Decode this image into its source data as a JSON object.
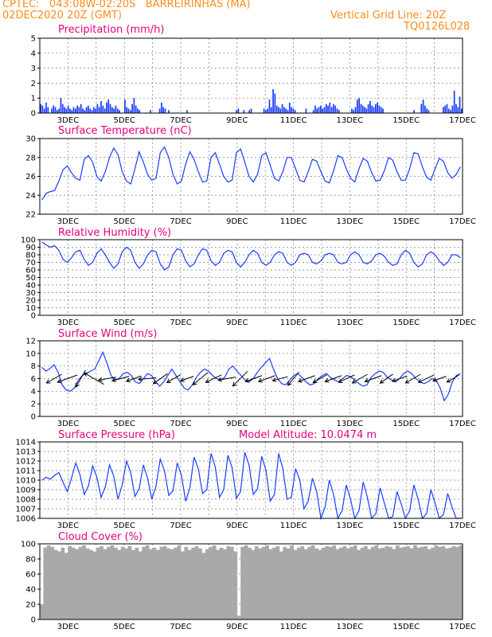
{
  "header": {
    "line1_left": "CPTEC:   043:08W-02:20S   BARREIRINHAS (MA)",
    "line2_left": "02DEC2020 20Z (GMT)",
    "line1_right": "Vertical Grid Line: 20Z",
    "line2_right": "TQ0126L028"
  },
  "colors": {
    "line": "#1a3cff",
    "bar": "#1a3cff",
    "cloud": "#a9a9a9",
    "title": "#e6007e",
    "header": "#ff8c1a"
  },
  "chart_data": [
    {
      "type": "bar",
      "title": "Precipitation (mm/h)",
      "ylim": [
        0,
        5
      ],
      "yticks": [
        "0",
        "1",
        "2",
        "3",
        "4",
        "5"
      ],
      "xticks": [
        "3DEC",
        "5DEC",
        "7DEC",
        "9DEC",
        "11DEC",
        "13DEC",
        "15DEC",
        "17DEC"
      ],
      "grid": true,
      "series": [
        {
          "values": [
            0.6,
            0.5,
            0.3,
            0.7,
            0.4,
            0,
            0.3,
            0.5,
            0.4,
            0.2,
            0.3,
            1.0,
            0.6,
            0.4,
            0.3,
            0.5,
            0.3,
            0.2,
            0.4,
            0.3,
            0.5,
            0.4,
            0.6,
            0.3,
            0.2,
            0.4,
            0.5,
            0.3,
            0.2,
            0.4,
            0.3,
            0.6,
            0.4,
            0.8,
            0.5,
            0.3,
            0.7,
            0.9,
            0.6,
            0.4,
            0.3,
            0.5,
            0.3,
            0.2,
            0,
            0,
            0.9,
            0.4,
            0.3,
            0.2,
            0.6,
            1.0,
            0.5,
            0.3,
            0.2,
            0,
            0,
            0,
            0,
            0,
            0.2,
            0,
            0,
            0,
            0,
            0.3,
            0.7,
            0.4,
            0.3,
            0,
            0.2,
            0,
            0,
            0,
            0,
            0,
            0,
            0,
            0,
            0,
            0.2,
            0,
            0,
            0,
            0,
            0,
            0,
            0,
            0,
            0,
            0,
            0,
            0,
            0,
            0,
            0,
            0,
            0,
            0,
            0,
            0,
            0,
            0,
            0,
            0,
            0,
            0,
            0.2,
            0.3,
            0,
            0,
            0.2,
            0,
            0,
            0.2,
            0.3,
            0,
            0,
            0,
            0,
            0,
            0,
            0.3,
            0.2,
            0.3,
            0.9,
            0.4,
            1.6,
            1.3,
            0.5,
            0.4,
            0.3,
            0.6,
            0.4,
            0.3,
            0.2,
            0.7,
            0.4,
            0.3,
            0.2,
            0,
            0,
            0,
            0,
            0,
            0.3,
            0,
            0,
            0,
            0.2,
            0.5,
            0.3,
            0.4,
            0.5,
            0.3,
            0.4,
            0.6,
            0.5,
            0.7,
            0.4,
            0.6,
            0.5,
            0.3,
            0.2,
            0,
            0,
            0,
            0,
            0,
            0,
            0.3,
            0.2,
            0.4,
            0.9,
            1.0,
            0.6,
            0.5,
            0.4,
            0.3,
            0.6,
            0.8,
            0.5,
            0.4,
            0.6,
            0.7,
            0.5,
            0.4,
            0.3,
            0,
            0,
            0,
            0,
            0,
            0,
            0,
            0,
            0,
            0,
            0,
            0,
            0,
            0,
            0,
            0,
            0.2,
            0,
            0,
            0,
            0.6,
            0.9,
            0.5,
            0.3,
            0.2,
            0,
            0,
            0,
            0,
            0,
            0,
            0,
            0.4,
            0.5,
            0.6,
            0.3,
            0.2,
            0.5,
            1.5,
            0.6,
            0.4,
            1.1,
            0.3
          ]
        }
      ]
    },
    {
      "type": "line",
      "title": "Surface Temperature (nC)",
      "ylim": [
        22,
        30
      ],
      "yticks": [
        "22",
        "24",
        "26",
        "28",
        "30"
      ],
      "xticks": [
        "3DEC",
        "5DEC",
        "7DEC",
        "9DEC",
        "11DEC",
        "13DEC",
        "15DEC",
        "17DEC"
      ],
      "grid": true,
      "series": [
        {
          "values": [
            23.5,
            24.2,
            24.4,
            24.5,
            25.5,
            26.7,
            27.1,
            26.4,
            25.8,
            25.6,
            27.8,
            28.2,
            27.5,
            26.0,
            25.5,
            26.5,
            28.0,
            29.0,
            28.3,
            26.5,
            25.5,
            25.2,
            26.8,
            28.6,
            27.5,
            26.2,
            25.6,
            25.8,
            28.5,
            29.1,
            28.0,
            26.2,
            25.2,
            25.5,
            27.3,
            28.6,
            27.8,
            26.5,
            25.4,
            25.5,
            28.0,
            28.5,
            27.3,
            26.0,
            25.4,
            25.6,
            28.5,
            28.9,
            27.5,
            26.0,
            25.4,
            26.2,
            28.2,
            28.5,
            27.2,
            25.8,
            25.5,
            26.5,
            28.0,
            28.0,
            26.8,
            25.6,
            25.4,
            26.5,
            27.8,
            27.6,
            26.5,
            25.5,
            25.3,
            26.6,
            28.2,
            28.0,
            26.8,
            25.8,
            25.4,
            26.8,
            27.9,
            27.6,
            26.4,
            25.5,
            25.6,
            26.6,
            28.0,
            27.7,
            26.5,
            25.6,
            25.6,
            26.8,
            28.5,
            28.4,
            27.0,
            25.9,
            25.6,
            26.8,
            27.9,
            27.6,
            26.4,
            25.8,
            26.2,
            27.0
          ]
        }
      ]
    },
    {
      "type": "line",
      "title": "Relative Humidity (%)",
      "ylim": [
        0,
        100
      ],
      "yticks": [
        "0",
        "10",
        "20",
        "30",
        "40",
        "50",
        "60",
        "70",
        "80",
        "90",
        "100"
      ],
      "xticks": [
        "3DEC",
        "5DEC",
        "7DEC",
        "9DEC",
        "11DEC",
        "13DEC",
        "15DEC",
        "17DEC"
      ],
      "grid": true,
      "series": [
        {
          "values": [
            97,
            93,
            90,
            92,
            86,
            74,
            70,
            76,
            84,
            86,
            74,
            66,
            70,
            82,
            88,
            80,
            70,
            62,
            68,
            84,
            90,
            86,
            70,
            62,
            68,
            80,
            86,
            84,
            68,
            60,
            64,
            80,
            88,
            86,
            72,
            64,
            68,
            80,
            88,
            86,
            72,
            66,
            70,
            82,
            86,
            84,
            70,
            64,
            70,
            80,
            86,
            82,
            70,
            66,
            70,
            80,
            84,
            82,
            70,
            66,
            70,
            80,
            82,
            80,
            70,
            68,
            72,
            80,
            82,
            80,
            70,
            68,
            70,
            80,
            84,
            80,
            70,
            68,
            72,
            80,
            82,
            78,
            70,
            66,
            68,
            80,
            86,
            82,
            70,
            64,
            68,
            80,
            84,
            80,
            72,
            66,
            70,
            80,
            80,
            76
          ]
        }
      ]
    },
    {
      "type": "line",
      "title": "Surface Wind (m/s)",
      "ylim": [
        0,
        12
      ],
      "yticks": [
        "0",
        "2",
        "4",
        "6",
        "8",
        "10",
        "12"
      ],
      "xticks": [
        "3DEC",
        "5DEC",
        "7DEC",
        "9DEC",
        "11DEC",
        "13DEC",
        "15DEC",
        "17DEC"
      ],
      "grid": true,
      "series": [
        {
          "values": [
            7.8,
            7.2,
            7.6,
            8.2,
            7.0,
            5.0,
            4.2,
            4.0,
            4.5,
            5.8,
            6.5,
            6.8,
            7.2,
            7.5,
            8.8,
            10.2,
            8.5,
            6.5,
            5.8,
            6.0,
            6.8,
            7.0,
            6.5,
            5.5,
            5.2,
            6.0,
            6.8,
            6.5,
            5.5,
            4.8,
            5.5,
            6.5,
            7.5,
            6.5,
            5.5,
            4.5,
            4.2,
            5.0,
            6.2,
            7.0,
            7.5,
            7.2,
            6.5,
            6.0,
            5.8,
            6.2,
            7.5,
            8.0,
            7.2,
            6.5,
            5.8,
            5.5,
            6.0,
            7.0,
            7.8,
            8.5,
            9.2,
            7.5,
            6.0,
            5.2,
            5.0,
            5.8,
            6.5,
            6.8,
            6.2,
            5.5,
            5.0,
            5.2,
            6.0,
            6.5,
            6.8,
            6.2,
            5.8,
            5.5,
            6.0,
            6.5,
            6.3,
            5.8,
            5.2,
            4.8,
            5.0,
            6.2,
            6.8,
            7.2,
            7.0,
            6.2,
            5.8,
            5.5,
            6.0,
            6.8,
            7.2,
            6.8,
            6.0,
            5.5,
            5.2,
            5.5,
            6.0,
            5.8,
            4.5,
            2.5,
            3.5,
            5.5,
            6.5,
            6.8
          ]
        }
      ],
      "wind_arrows": [
        {
          "dir_deg": 210,
          "len": 1.0
        },
        {
          "dir_deg": 200,
          "len": 1.2
        },
        {
          "dir_deg": 240,
          "len": 1.1
        },
        {
          "dir_deg": 150,
          "len": 1.3
        },
        {
          "dir_deg": 190,
          "len": 1.0
        },
        {
          "dir_deg": 195,
          "len": 1.0
        },
        {
          "dir_deg": 200,
          "len": 0.9
        },
        {
          "dir_deg": 185,
          "len": 1.0
        },
        {
          "dir_deg": 215,
          "len": 1.0
        },
        {
          "dir_deg": 210,
          "len": 0.9
        },
        {
          "dir_deg": 200,
          "len": 0.8
        },
        {
          "dir_deg": 220,
          "len": 1.1
        },
        {
          "dir_deg": 205,
          "len": 1.0
        },
        {
          "dir_deg": 190,
          "len": 1.0
        },
        {
          "dir_deg": 225,
          "len": 1.2
        },
        {
          "dir_deg": 200,
          "len": 1.0
        },
        {
          "dir_deg": 200,
          "len": 1.0
        },
        {
          "dir_deg": 195,
          "len": 0.9
        },
        {
          "dir_deg": 230,
          "len": 1.0
        },
        {
          "dir_deg": 200,
          "len": 1.0
        },
        {
          "dir_deg": 210,
          "len": 0.9
        },
        {
          "dir_deg": 200,
          "len": 1.0
        },
        {
          "dir_deg": 205,
          "len": 1.0
        },
        {
          "dir_deg": 210,
          "len": 1.0
        },
        {
          "dir_deg": 200,
          "len": 1.0
        },
        {
          "dir_deg": 215,
          "len": 0.9
        },
        {
          "dir_deg": 200,
          "len": 0.9
        },
        {
          "dir_deg": 210,
          "len": 1.0
        },
        {
          "dir_deg": 205,
          "len": 1.0
        },
        {
          "dir_deg": 200,
          "len": 0.8
        },
        {
          "dir_deg": 210,
          "len": 0.8
        }
      ]
    },
    {
      "type": "line",
      "title": "Surface Pressure (hPa)",
      "annotation": "Model Altitude: 10.0474 m",
      "ylim": [
        1006,
        1014
      ],
      "yticks": [
        "1006",
        "1007",
        "1008",
        "1009",
        "1010",
        "1011",
        "1012",
        "1013",
        "1014"
      ],
      "xticks": [
        "3DEC",
        "5DEC",
        "7DEC",
        "9DEC",
        "11DEC",
        "13DEC",
        "15DEC",
        "17DEC"
      ],
      "grid": true,
      "series": [
        {
          "values": [
            1010.0,
            1010.3,
            1010.1,
            1010.5,
            1010.8,
            1009.8,
            1008.8,
            1010.2,
            1011.8,
            1010.6,
            1008.5,
            1009.4,
            1011.5,
            1010.3,
            1008.2,
            1009.3,
            1011.6,
            1010.4,
            1008.0,
            1009.5,
            1012.0,
            1010.8,
            1008.3,
            1009.1,
            1011.6,
            1010.2,
            1008.0,
            1009.4,
            1012.2,
            1011.0,
            1008.4,
            1008.9,
            1011.8,
            1010.5,
            1007.8,
            1009.2,
            1012.4,
            1011.2,
            1008.6,
            1009.0,
            1012.8,
            1011.4,
            1008.2,
            1009.0,
            1012.6,
            1011.3,
            1008.1,
            1008.8,
            1012.9,
            1011.6,
            1008.5,
            1009.1,
            1012.5,
            1011.0,
            1007.8,
            1008.5,
            1012.8,
            1011.2,
            1008.0,
            1008.2,
            1011.2,
            1010.0,
            1007.0,
            1007.8,
            1010.2,
            1008.8,
            1005.8,
            1007.2,
            1010.0,
            1008.5,
            1005.8,
            1006.8,
            1009.5,
            1008.0,
            1005.5,
            1006.8,
            1009.8,
            1008.2,
            1005.6,
            1006.5,
            1009.2,
            1007.6,
            1005.2,
            1006.2,
            1008.8,
            1007.5,
            1005.5,
            1006.8,
            1009.5,
            1008.0,
            1005.6,
            1006.5,
            1009.0,
            1007.6,
            1005.4,
            1006.4,
            1008.6,
            1007.2,
            1005.2,
            1006.0
          ]
        }
      ]
    },
    {
      "type": "bar",
      "title": "Cloud Cover (%)",
      "ylim": [
        0,
        100
      ],
      "yticks": [
        "0",
        "20",
        "40",
        "60",
        "80",
        "100"
      ],
      "xticks": [
        "3DEC",
        "5DEC",
        "7DEC",
        "9DEC",
        "11DEC",
        "13DEC",
        "15DEC",
        "17DEC"
      ],
      "grid": true,
      "series": [
        {
          "values": [
            20,
            95,
            98,
            96,
            92,
            90,
            95,
            88,
            97,
            95,
            93,
            96,
            98,
            94,
            92,
            90,
            95,
            97,
            93,
            96,
            98,
            95,
            92,
            96,
            94,
            97,
            92,
            95,
            90,
            96,
            98,
            93,
            95,
            92,
            96,
            97,
            94,
            93,
            95,
            98,
            90,
            96,
            92,
            95,
            97,
            94,
            88,
            93,
            96,
            98,
            92,
            95,
            93,
            97,
            96,
            90,
            5,
            96,
            98,
            95,
            92,
            97,
            94,
            96,
            98,
            93,
            95,
            97,
            90,
            96,
            94,
            98,
            92,
            95,
            97,
            93,
            96,
            98,
            94,
            92,
            95,
            97,
            96,
            98,
            93,
            95,
            97,
            94,
            96,
            98,
            92,
            95,
            97,
            93,
            96,
            98,
            94,
            95,
            97,
            96,
            93,
            98,
            95,
            96,
            97,
            94,
            98,
            95,
            96,
            97,
            93,
            95,
            98,
            96,
            97,
            94,
            95,
            97,
            96,
            98
          ]
        }
      ]
    }
  ]
}
